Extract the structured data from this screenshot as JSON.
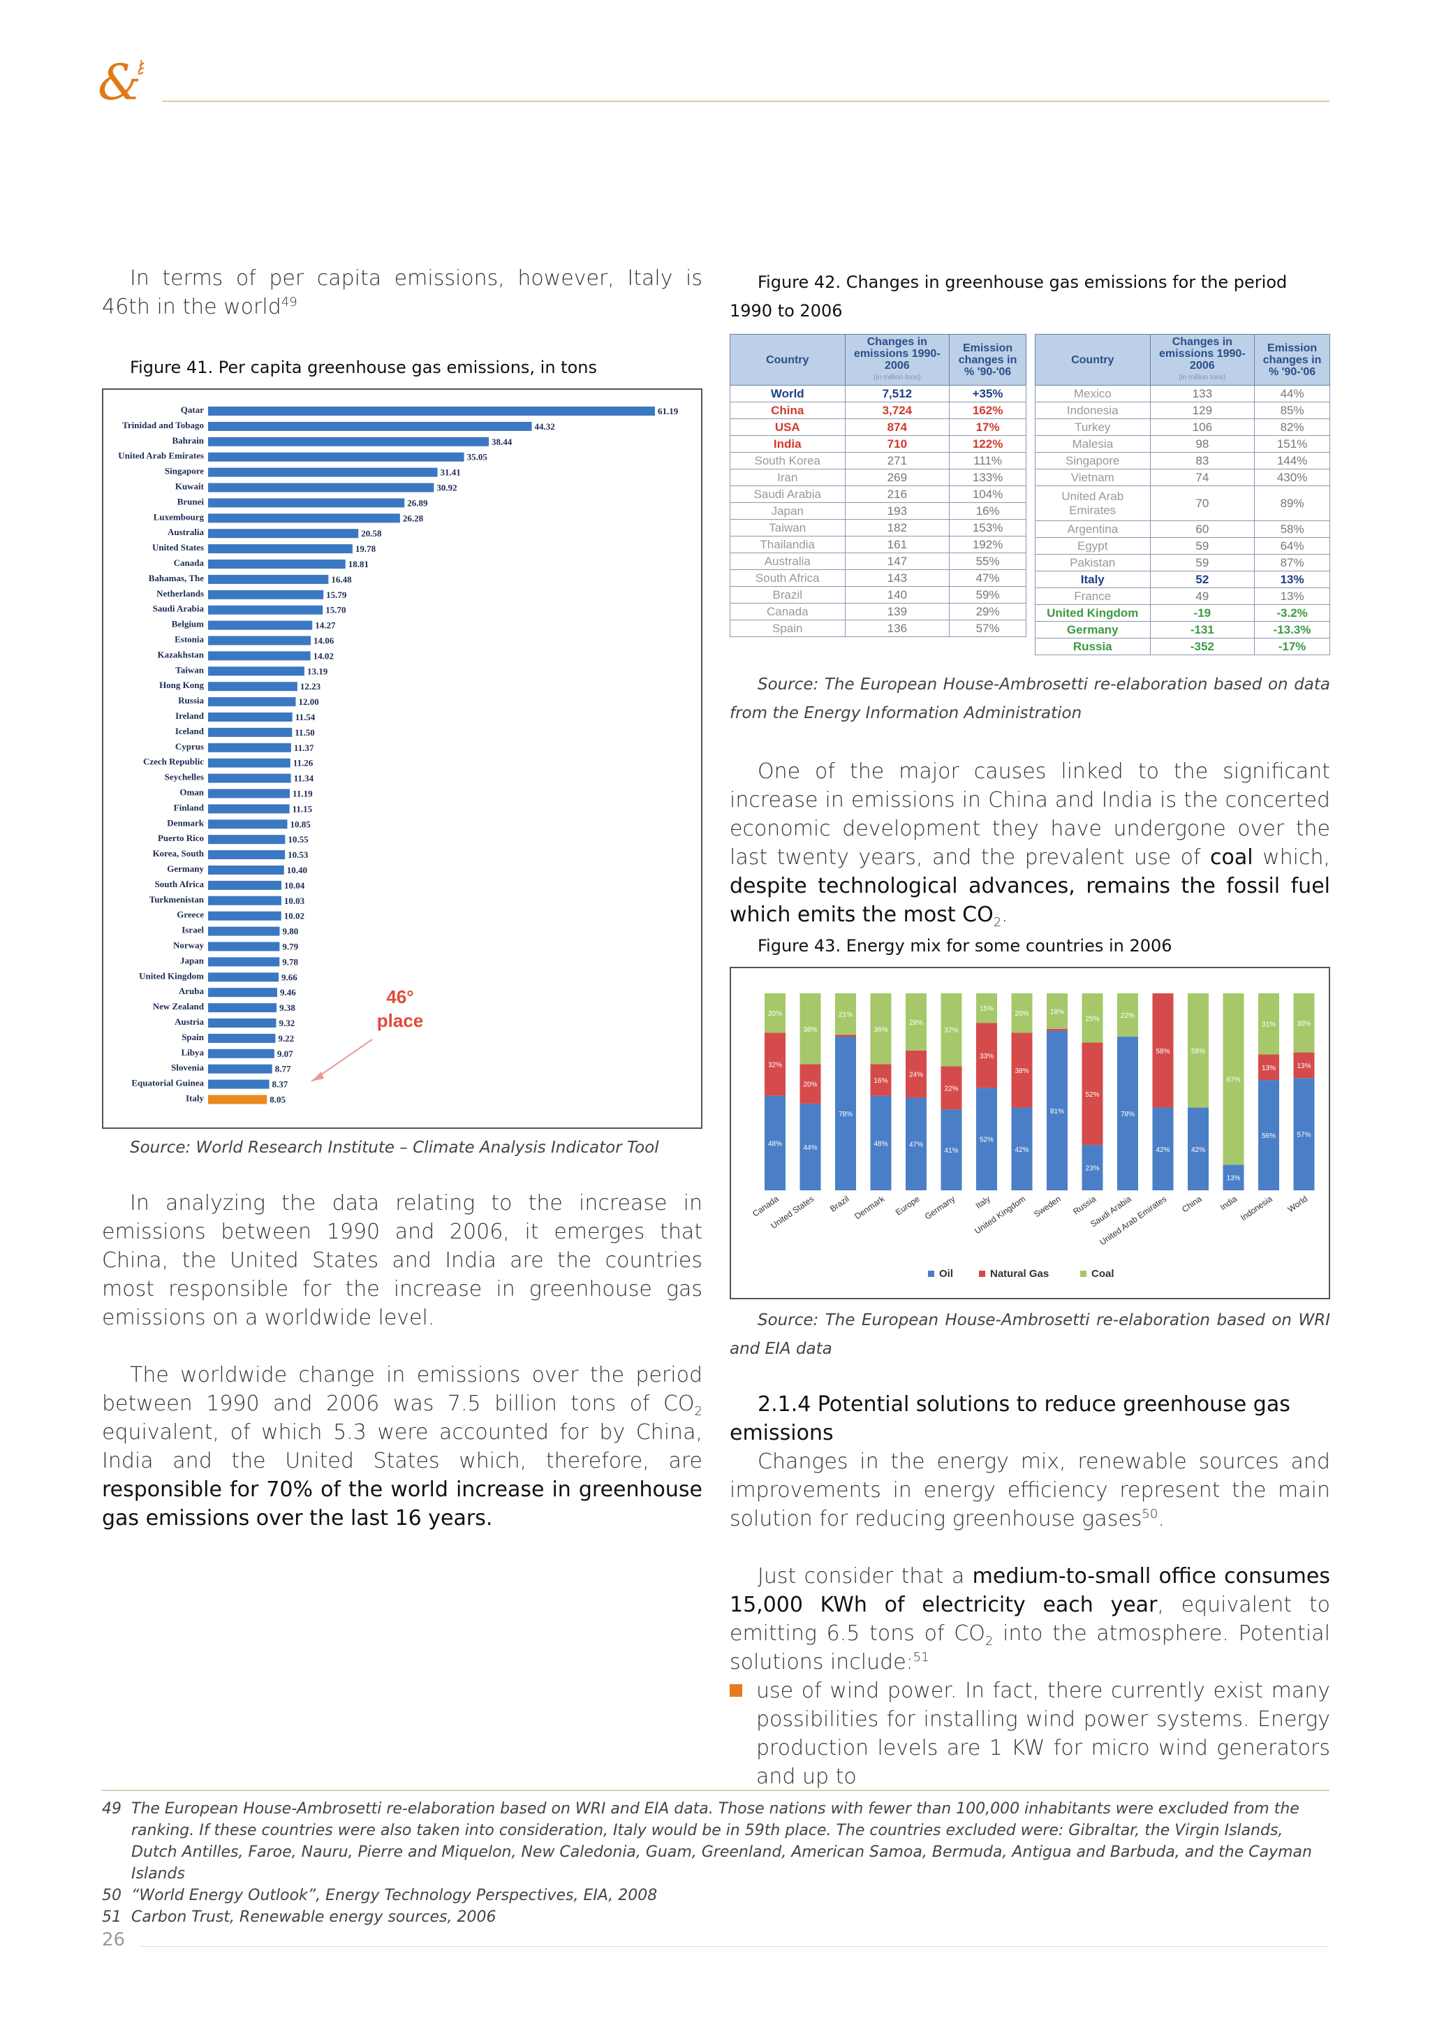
{
  "page_number": "26",
  "left": {
    "intro": "In terms of per capita emissions, however, Italy is 46th in the world",
    "intro_ref": "49",
    "fig41_caption": "Figure 41. Per capita greenhouse gas emissions, in tons",
    "fig41_source": "Source: World Research Institute – Climate Analysis Indicator Tool",
    "para1": "In analyzing the data relating to the increase in emissions between 1990 and 2006, it emerges that China, the United States and India are the countries most responsible for the increase in greenhouse gas emissions on a worldwide level.",
    "para2_a": "The worldwide change in emissions over the period between 1990 and 2006 was 7.5 billion tons of CO",
    "para2_sub": "2",
    "para2_b": " equivalent, of which 5.3 were accounted for by China, India and the United States which, therefore, are ",
    "para2_strong": "responsible for 70% of the world increase in greenhouse gas emissions over the last 16 years."
  },
  "right": {
    "fig42_caption": "Figure 42. Changes in greenhouse gas emissions for the period 1990 to 2006",
    "fig42_source": "Source: The European House-Ambrosetti re-elaboration based on data from the Energy Information Administration",
    "para1_a": "One of the major causes linked to the significant increase in emissions in China and India is the concerted economic development they have undergone over the last twenty years, and the prevalent use of ",
    "para1_strong1": "coal",
    "para1_b": " which, ",
    "para1_strong2": "despite technological advances, remains the fossil fuel which emits the most CO",
    "para1_sub": "2",
    "para1_c": ".",
    "fig43_caption": "Figure 43. Energy mix for some countries in 2006",
    "fig43_source": "Source: The European House-Ambrosetti re-elaboration based on WRI and EIA data",
    "heading": "2.1.4  Potential solutions to reduce greenhouse gas emissions",
    "para2": "Changes in the energy mix, renewable sources and improvements in energy efficiency represent the main solution for reducing greenhouse gases",
    "para2_ref": "50",
    "para2_end": ".",
    "para3_a": "Just consider that a ",
    "para3_strong": "medium-to-small office consumes 15,000 KWh of electricity each year",
    "para3_b": ", equivalent to emitting 6.5 tons of CO",
    "para3_sub": "2",
    "para3_c": " into the atmosphere. Potential solutions include:",
    "para3_ref": "51",
    "bullet1": "use of wind power. In fact, there currently exist many possibilities for installing wind power systems. Energy production levels are 1 KW for micro wind generators and up to"
  },
  "table42": {
    "headers": [
      "Country",
      "Changes in emissions 1990-2006",
      "Emission changes in % '90-'06"
    ],
    "unit": "(in million tons)",
    "left_rows": [
      {
        "c": "World",
        "v": "7,512",
        "p": "+35%",
        "style": "blue"
      },
      {
        "c": "China",
        "v": "3,724",
        "p": "162%",
        "style": "red"
      },
      {
        "c": "USA",
        "v": "874",
        "p": "17%",
        "style": "red"
      },
      {
        "c": "India",
        "v": "710",
        "p": "122%",
        "style": "red"
      },
      {
        "c": "South Korea",
        "v": "271",
        "p": "111%",
        "style": ""
      },
      {
        "c": "Iran",
        "v": "269",
        "p": "133%",
        "style": ""
      },
      {
        "c": "Saudi Arabia",
        "v": "216",
        "p": "104%",
        "style": ""
      },
      {
        "c": "Japan",
        "v": "193",
        "p": "16%",
        "style": ""
      },
      {
        "c": "Taiwan",
        "v": "182",
        "p": "153%",
        "style": ""
      },
      {
        "c": "Thailandia",
        "v": "161",
        "p": "192%",
        "style": ""
      },
      {
        "c": "Australia",
        "v": "147",
        "p": "55%",
        "style": ""
      },
      {
        "c": "South Africa",
        "v": "143",
        "p": "47%",
        "style": ""
      },
      {
        "c": "Brazil",
        "v": "140",
        "p": "59%",
        "style": ""
      },
      {
        "c": "Canada",
        "v": "139",
        "p": "29%",
        "style": ""
      },
      {
        "c": "Spain",
        "v": "136",
        "p": "57%",
        "style": ""
      }
    ],
    "right_rows": [
      {
        "c": "Mexico",
        "v": "133",
        "p": "44%",
        "style": ""
      },
      {
        "c": "Indonesia",
        "v": "129",
        "p": "85%",
        "style": ""
      },
      {
        "c": "Turkey",
        "v": "106",
        "p": "82%",
        "style": ""
      },
      {
        "c": "Malesia",
        "v": "98",
        "p": "151%",
        "style": ""
      },
      {
        "c": "Singapore",
        "v": "83",
        "p": "144%",
        "style": ""
      },
      {
        "c": "Vietnam",
        "v": "74",
        "p": "430%",
        "style": ""
      },
      {
        "c": "United Arab Emirates",
        "v": "70",
        "p": "89%",
        "style": "",
        "tall": true
      },
      {
        "c": "Argentina",
        "v": "60",
        "p": "58%",
        "style": ""
      },
      {
        "c": "Egypt",
        "v": "59",
        "p": "64%",
        "style": ""
      },
      {
        "c": "Pakistan",
        "v": "59",
        "p": "87%",
        "style": ""
      },
      {
        "c": "Italy",
        "v": "52",
        "p": "13%",
        "style": "dark"
      },
      {
        "c": "France",
        "v": "49",
        "p": "13%",
        "style": ""
      },
      {
        "c": "United Kingdom",
        "v": "-19",
        "p": "-3.2%",
        "style": "green"
      },
      {
        "c": "Germany",
        "v": "-131",
        "p": "-13.3%",
        "style": "green"
      },
      {
        "c": "Russia",
        "v": "-352",
        "p": "-17%",
        "style": "green"
      }
    ]
  },
  "chart_data": [
    {
      "type": "bar",
      "orientation": "horizontal",
      "title": "",
      "categories": [
        "Qatar",
        "Trinidad and Tobago",
        "Bahrain",
        "United Arab Emirates",
        "Singapore",
        "Kuwait",
        "Brunei",
        "Luxembourg",
        "Australia",
        "United States",
        "Canada",
        "Bahamas, The",
        "Netherlands",
        "Saudi Arabia",
        "Belgium",
        "Estonia",
        "Kazakhstan",
        "Taiwan",
        "Hong Kong",
        "Russia",
        "Ireland",
        "Iceland",
        "Cyprus",
        "Czech Republic",
        "Seychelles",
        "Oman",
        "Finland",
        "Denmark",
        "Puerto Rico",
        "Korea, South",
        "Germany",
        "South Africa",
        "Turkmenistan",
        "Greece",
        "Israel",
        "Norway",
        "Japan",
        "United Kingdom",
        "Aruba",
        "New Zealand",
        "Austria",
        "Spain",
        "Libya",
        "Slovenia",
        "Equatorial Guinea",
        "Italy"
      ],
      "values": [
        61.19,
        44.32,
        38.44,
        35.05,
        31.41,
        30.92,
        26.89,
        26.28,
        20.58,
        19.78,
        18.81,
        16.48,
        15.79,
        15.7,
        14.27,
        14.06,
        14.02,
        13.19,
        12.23,
        12.0,
        11.54,
        11.5,
        11.37,
        11.26,
        11.34,
        11.19,
        11.15,
        10.85,
        10.55,
        10.53,
        10.4,
        10.04,
        10.03,
        10.02,
        9.8,
        9.79,
        9.78,
        9.66,
        9.46,
        9.38,
        9.32,
        9.22,
        9.07,
        8.77,
        8.37,
        8.05
      ],
      "value_labels": [
        "61.19",
        "44.32",
        "38.44",
        "35.05",
        "31.41",
        "30.92",
        "26.89",
        "26.28",
        "20.58",
        "19.78",
        "18.81",
        "16.48",
        "15.79",
        "15.70",
        "14.27",
        "14.06",
        "14.02",
        "13.19",
        "12.23",
        "12.00",
        "11.54",
        "11.50",
        "11.37",
        "11.26",
        "11.34",
        "11.19",
        "11.15",
        "10.85",
        "10.55",
        "10.53",
        "10.40",
        "10.04",
        "10.03",
        "10.02",
        "9.80",
        "9.79",
        "9.78",
        "9.66",
        "9.46",
        "9.38",
        "9.32",
        "9.22",
        "9.07",
        "8.77",
        "8.37",
        "8.05"
      ],
      "highlight": "Italy",
      "annotation": "46° place",
      "colors": {
        "bar": "#3a78c2",
        "highlight": "#e88a1f",
        "annotation": "#e04a3a"
      }
    },
    {
      "type": "bar",
      "stacked": true,
      "percent": true,
      "categories": [
        "Canada",
        "United States",
        "Brazil",
        "Denmark",
        "Europe",
        "Germany",
        "Italy",
        "United Kingdom",
        "Sweden",
        "Russia",
        "Saudi Arabia",
        "United Arab Emirates",
        "China",
        "India",
        "Indonesia",
        "World"
      ],
      "series": [
        {
          "name": "Oil",
          "values": [
            48,
            44,
            78,
            48,
            47,
            41,
            52,
            42,
            81,
            23,
            78,
            42,
            42,
            13,
            56,
            57
          ]
        },
        {
          "name": "Natural Gas",
          "values": [
            32,
            20,
            1,
            16,
            24,
            22,
            33,
            38,
            1,
            52,
            0,
            58,
            0,
            0,
            13,
            13
          ]
        },
        {
          "name": "Coal",
          "values": [
            20,
            36,
            21,
            36,
            29,
            37,
            15,
            20,
            18,
            25,
            22,
            0,
            58,
            87,
            31,
            30
          ]
        }
      ],
      "legend": [
        "Oil",
        "Natural Gas",
        "Coal"
      ],
      "ylim": [
        0,
        100
      ],
      "colors": {
        "Oil": "#4a7fc7",
        "Natural Gas": "#d54b4b",
        "Coal": "#a6c86a"
      }
    }
  ],
  "footnotes": [
    {
      "num": "49",
      "text": "The European House-Ambrosetti re-elaboration based on WRI and EIA data. Those nations with fewer than 100,000 inhabitants were excluded from the ranking. If these countries were also taken into consideration, Italy would be in 59th place. The countries excluded were: Gibraltar, the Virgin Islands, Dutch Antilles, Faroe, Nauru, Pierre and Miquelon, New Caledonia, Guam, Greenland, American Samoa, Bermuda, Antigua and Barbuda, and the Cayman Islands"
    },
    {
      "num": "50",
      "text": "“World Energy Outlook”, Energy Technology Perspectives, EIA, 2008"
    },
    {
      "num": "51",
      "text": "Carbon Trust, Renewable energy sources, 2006"
    }
  ]
}
